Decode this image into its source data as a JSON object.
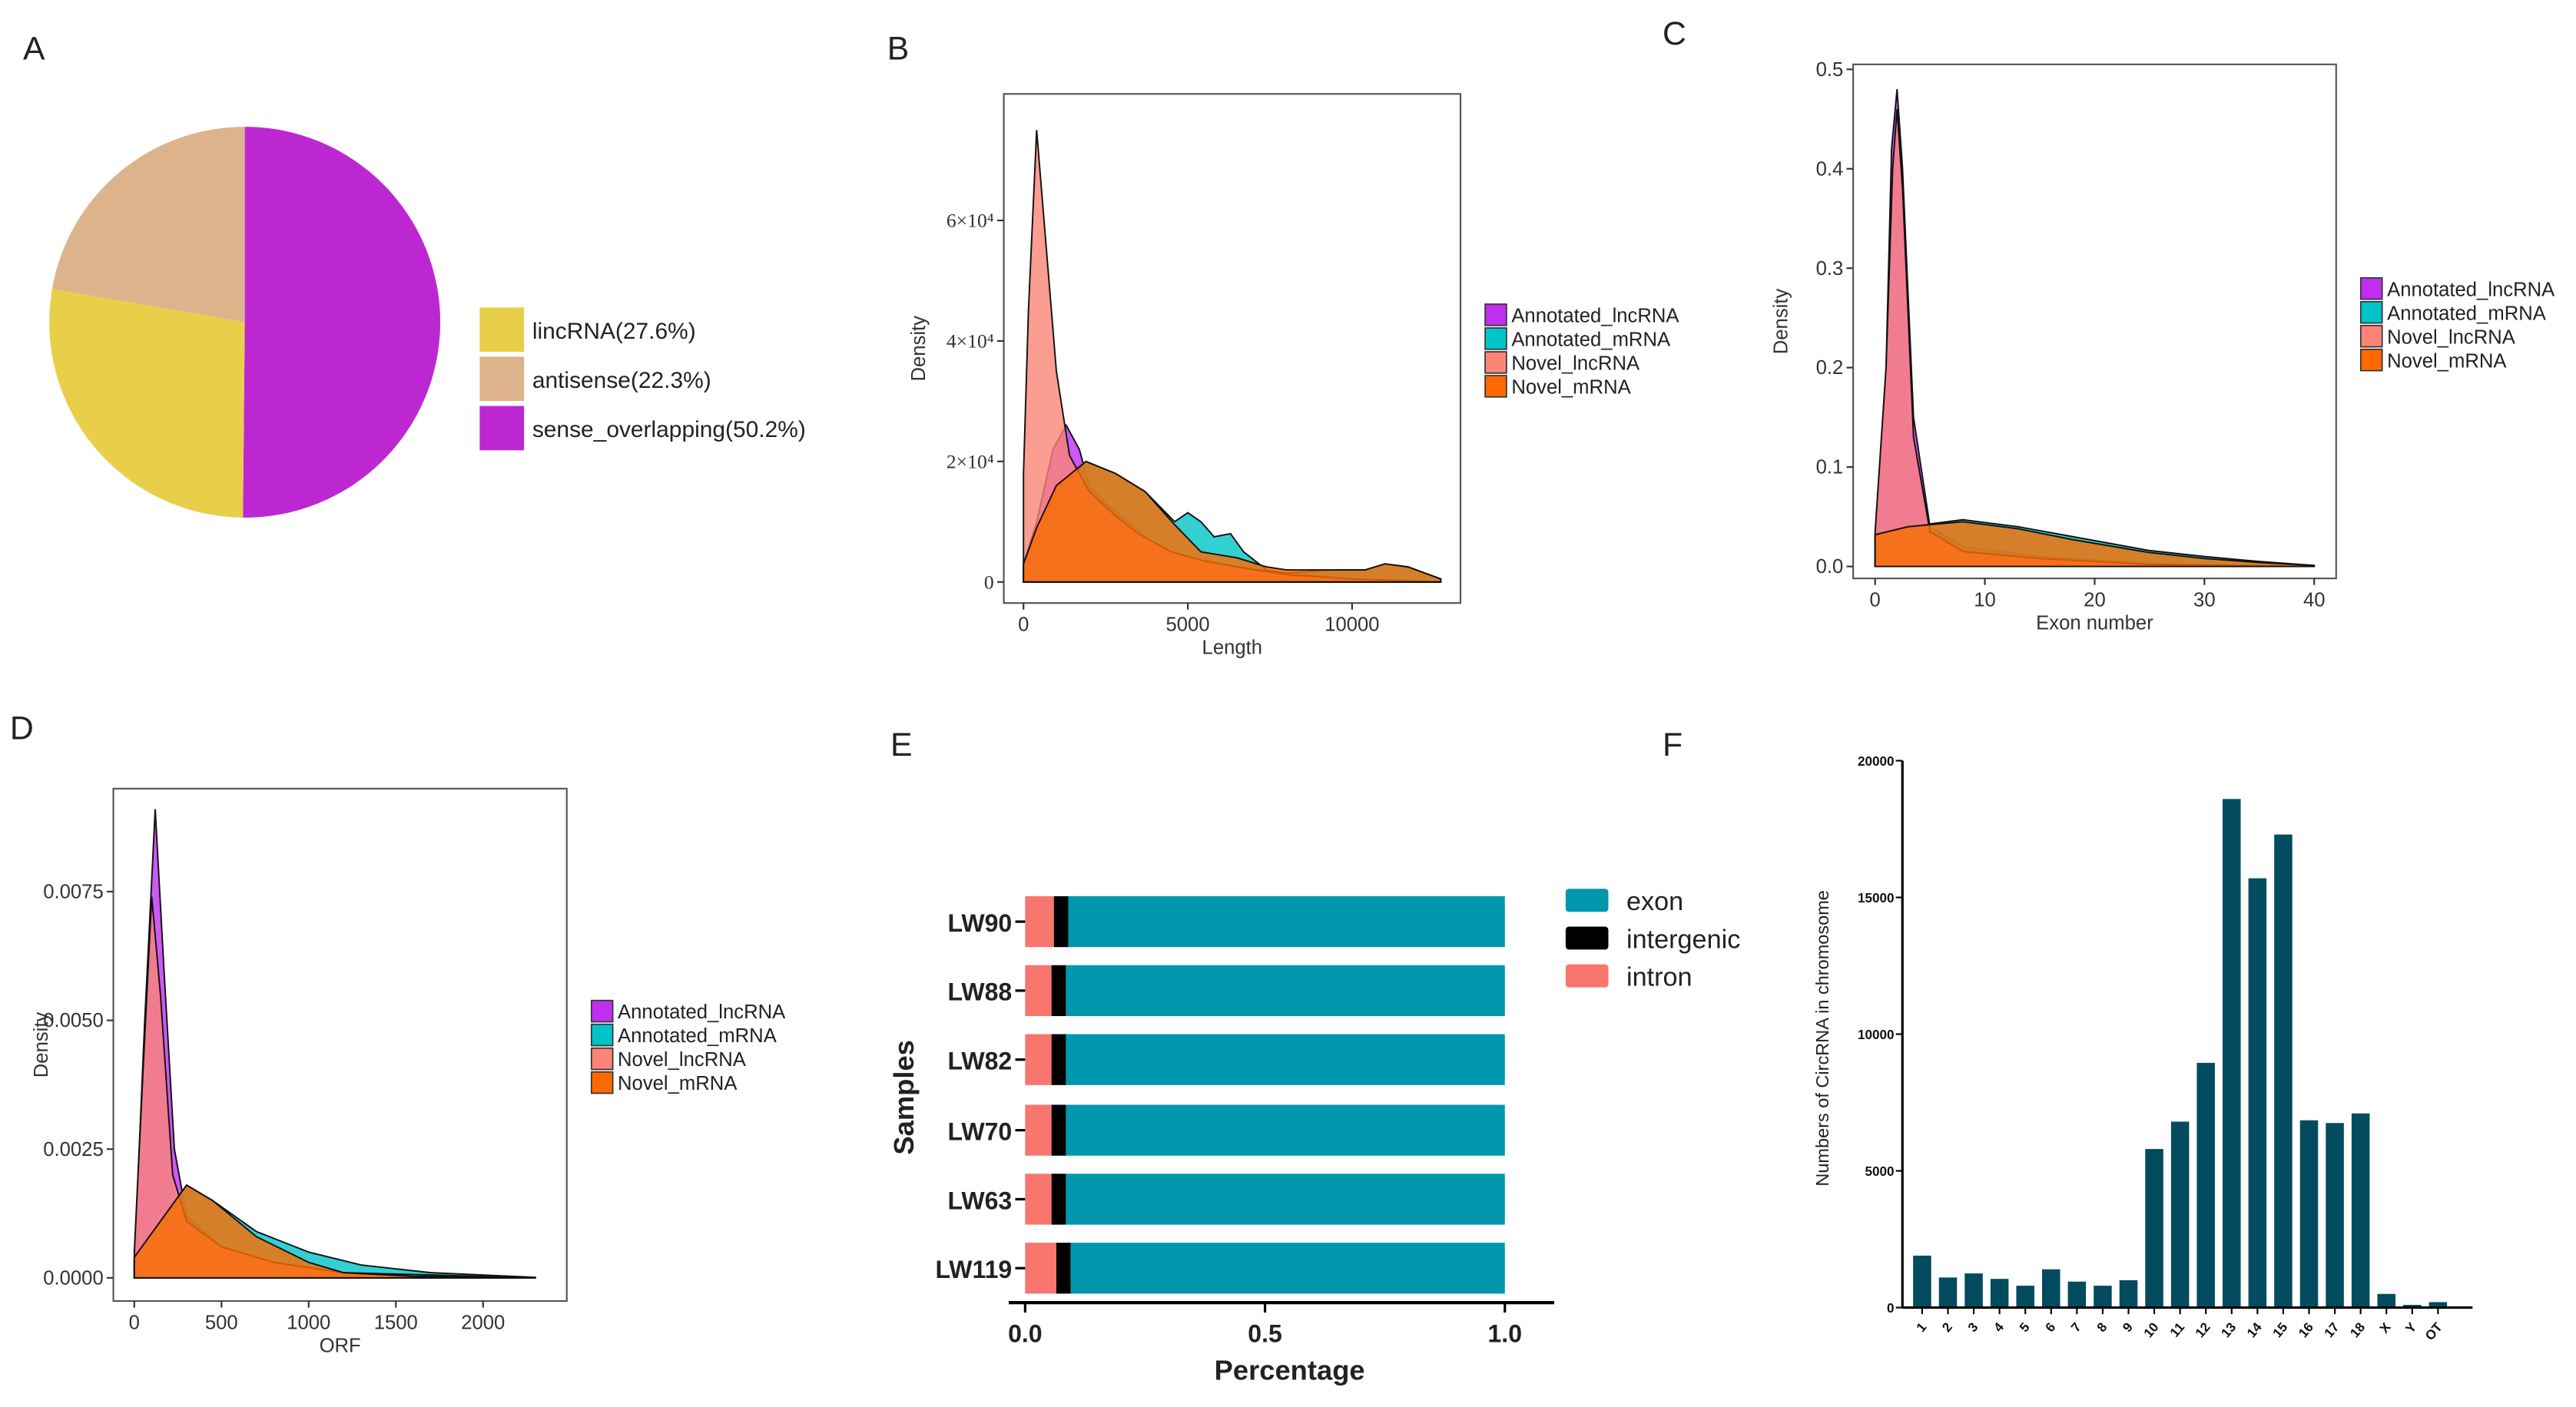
{
  "panel_labels": [
    "A",
    "B",
    "C",
    "D",
    "E",
    "F"
  ],
  "chart_data": [
    {
      "panel": "A",
      "type": "pie",
      "slices": [
        {
          "label": "sense_overlapping(50.2%)",
          "value": 50.2,
          "color": "#BD27D2"
        },
        {
          "label": "lincRNA(27.6%)",
          "value": 27.6,
          "color": "#E8CF4A"
        },
        {
          "label": "antisense(22.3%)",
          "value": 22.3,
          "color": "#DDB38C"
        }
      ],
      "legend_order": [
        1,
        2,
        0
      ],
      "legend": "right"
    },
    {
      "panel": "B",
      "type": "area",
      "xlabel": "Length",
      "ylabel": "Density",
      "xlim": [
        -600,
        13300
      ],
      "ylim": [
        -0.35,
        8.1
      ],
      "xticks": [
        "0",
        "5000",
        "10000"
      ],
      "xtick_values": [
        0,
        5000,
        10000
      ],
      "yticks": [
        "0",
        "2×10⁴",
        "4×10⁴",
        "6×10⁴"
      ],
      "ytick_values": [
        0,
        2,
        4,
        6
      ],
      "legend": "right",
      "series": [
        {
          "name": "Annotated_lncRNA",
          "color": "#C02FEF",
          "points": [
            [
              0,
              0.3
            ],
            [
              400,
              1.0
            ],
            [
              900,
              2.2
            ],
            [
              1300,
              2.6
            ],
            [
              1700,
              2.2
            ],
            [
              2000,
              1.6
            ],
            [
              2500,
              1.3
            ],
            [
              3200,
              1.0
            ],
            [
              4000,
              0.6
            ],
            [
              5000,
              0.4
            ],
            [
              6500,
              0.25
            ],
            [
              8000,
              0.15
            ],
            [
              10000,
              0.05
            ],
            [
              12700,
              0
            ]
          ]
        },
        {
          "name": "Annotated_mRNA",
          "color": "#00C4C8",
          "points": [
            [
              0,
              0.3
            ],
            [
              500,
              0.8
            ],
            [
              1000,
              1.5
            ],
            [
              1900,
              2.0
            ],
            [
              2800,
              1.8
            ],
            [
              3700,
              1.5
            ],
            [
              4600,
              1.0
            ],
            [
              5000,
              1.15
            ],
            [
              5400,
              1.0
            ],
            [
              5800,
              0.75
            ],
            [
              6300,
              0.8
            ],
            [
              6700,
              0.5
            ],
            [
              7400,
              0.2
            ],
            [
              8000,
              0.15
            ],
            [
              9500,
              0.2
            ],
            [
              10400,
              0.2
            ],
            [
              11000,
              0.3
            ],
            [
              11700,
              0.25
            ],
            [
              12700,
              0.05
            ]
          ]
        },
        {
          "name": "Novel_lncRNA",
          "color": "#FB8476",
          "points": [
            [
              0,
              1.8
            ],
            [
              150,
              4.5
            ],
            [
              400,
              7.5
            ],
            [
              700,
              5.5
            ],
            [
              1000,
              3.5
            ],
            [
              1400,
              2.1
            ],
            [
              2000,
              1.5
            ],
            [
              2800,
              1.1
            ],
            [
              3500,
              0.8
            ],
            [
              4500,
              0.5
            ],
            [
              5500,
              0.35
            ],
            [
              6500,
              0.25
            ],
            [
              8000,
              0.12
            ],
            [
              10000,
              0.05
            ],
            [
              12700,
              0
            ]
          ]
        },
        {
          "name": "Novel_mRNA",
          "color": "#FF6A00",
          "points": [
            [
              0,
              0.3
            ],
            [
              400,
              0.9
            ],
            [
              1000,
              1.6
            ],
            [
              1900,
              2.0
            ],
            [
              2800,
              1.8
            ],
            [
              3700,
              1.5
            ],
            [
              4600,
              0.95
            ],
            [
              5400,
              0.5
            ],
            [
              6500,
              0.4
            ],
            [
              7400,
              0.25
            ],
            [
              8000,
              0.2
            ],
            [
              9500,
              0.2
            ],
            [
              10400,
              0.2
            ],
            [
              11000,
              0.3
            ],
            [
              11700,
              0.25
            ],
            [
              12700,
              0.05
            ]
          ]
        }
      ]
    },
    {
      "panel": "C",
      "type": "area",
      "xlabel": "Exon number",
      "ylabel": "Density",
      "xlim": [
        -2,
        42
      ],
      "ylim": [
        -0.012,
        0.505
      ],
      "xticks": [
        "0",
        "10",
        "20",
        "30",
        "40"
      ],
      "xtick_values": [
        0,
        10,
        20,
        30,
        40
      ],
      "yticks": [
        "0.0",
        "0.1",
        "0.2",
        "0.3",
        "0.4",
        "0.5"
      ],
      "ytick_values": [
        0,
        0.1,
        0.2,
        0.3,
        0.4,
        0.5
      ],
      "legend": "right",
      "series": [
        {
          "name": "Annotated_lncRNA",
          "color": "#C02FEF",
          "points": [
            [
              0,
              0.03
            ],
            [
              1,
              0.2
            ],
            [
              1.5,
              0.42
            ],
            [
              2,
              0.48
            ],
            [
              2.5,
              0.4
            ],
            [
              3.5,
              0.15
            ],
            [
              5,
              0.04
            ],
            [
              8,
              0.02
            ],
            [
              15,
              0.01
            ],
            [
              25,
              0.003
            ],
            [
              40,
              0
            ]
          ]
        },
        {
          "name": "Annotated_mRNA",
          "color": "#00C4C8",
          "points": [
            [
              0,
              0.032
            ],
            [
              3,
              0.04
            ],
            [
              8,
              0.047
            ],
            [
              13,
              0.04
            ],
            [
              18,
              0.03
            ],
            [
              25,
              0.016
            ],
            [
              30,
              0.01
            ],
            [
              35,
              0.005
            ],
            [
              40,
              0.001
            ]
          ]
        },
        {
          "name": "Novel_lncRNA",
          "color": "#FB8476",
          "points": [
            [
              0,
              0.035
            ],
            [
              1,
              0.2
            ],
            [
              1.6,
              0.4
            ],
            [
              2,
              0.46
            ],
            [
              2.5,
              0.38
            ],
            [
              3.5,
              0.13
            ],
            [
              5,
              0.035
            ],
            [
              8,
              0.015
            ],
            [
              15,
              0.008
            ],
            [
              25,
              0.002
            ],
            [
              40,
              0
            ]
          ]
        },
        {
          "name": "Novel_mRNA",
          "color": "#FF6A00",
          "points": [
            [
              0,
              0.032
            ],
            [
              3,
              0.04
            ],
            [
              8,
              0.045
            ],
            [
              13,
              0.038
            ],
            [
              18,
              0.027
            ],
            [
              25,
              0.014
            ],
            [
              30,
              0.008
            ],
            [
              35,
              0.004
            ],
            [
              40,
              0.001
            ]
          ]
        }
      ]
    },
    {
      "panel": "D",
      "type": "area",
      "xlabel": "ORF",
      "ylabel": "Density",
      "xlim": [
        -120,
        2480
      ],
      "ylim": [
        -0.00045,
        0.0095
      ],
      "xticks": [
        "0",
        "500",
        "1000",
        "1500",
        "2000"
      ],
      "xtick_values": [
        0,
        500,
        1000,
        1500,
        2000
      ],
      "yticks": [
        "0.0000",
        "0.0025",
        "0.0050",
        "0.0075"
      ],
      "ytick_values": [
        0,
        0.0025,
        0.005,
        0.0075
      ],
      "legend": "right",
      "series": [
        {
          "name": "Annotated_lncRNA",
          "color": "#C02FEF",
          "points": [
            [
              0,
              0.0003
            ],
            [
              60,
              0.005
            ],
            [
              120,
              0.0091
            ],
            [
              170,
              0.006
            ],
            [
              230,
              0.0025
            ],
            [
              300,
              0.0012
            ],
            [
              500,
              0.0006
            ],
            [
              800,
              0.0003
            ],
            [
              1200,
              0.0001
            ],
            [
              2300,
              0
            ]
          ]
        },
        {
          "name": "Annotated_mRNA",
          "color": "#00C4C8",
          "points": [
            [
              0,
              0.0004
            ],
            [
              150,
              0.0011
            ],
            [
              300,
              0.0018
            ],
            [
              450,
              0.0015
            ],
            [
              700,
              0.0009
            ],
            [
              1000,
              0.0005
            ],
            [
              1300,
              0.00025
            ],
            [
              1700,
              0.0001
            ],
            [
              2300,
              1e-05
            ]
          ]
        },
        {
          "name": "Novel_lncRNA",
          "color": "#FB8476",
          "points": [
            [
              0,
              0.0005
            ],
            [
              50,
              0.004
            ],
            [
              100,
              0.0074
            ],
            [
              150,
              0.0055
            ],
            [
              220,
              0.002
            ],
            [
              300,
              0.0011
            ],
            [
              500,
              0.0006
            ],
            [
              800,
              0.0003
            ],
            [
              1200,
              0.0001
            ],
            [
              2300,
              0
            ]
          ]
        },
        {
          "name": "Novel_mRNA",
          "color": "#FF6A00",
          "points": [
            [
              0,
              0.0004
            ],
            [
              150,
              0.0011
            ],
            [
              300,
              0.0018
            ],
            [
              450,
              0.0015
            ],
            [
              700,
              0.0008
            ],
            [
              1000,
              0.0003
            ],
            [
              1200,
              0.0001
            ],
            [
              1600,
              3e-05
            ],
            [
              2300,
              0
            ]
          ]
        }
      ]
    },
    {
      "panel": "E",
      "type": "bar",
      "orientation": "horizontal",
      "stacked": true,
      "xlabel": "Percentage",
      "ylabel": "Samples",
      "xlim": [
        0,
        1.1
      ],
      "xticks": [
        "0.0",
        "0.5",
        "1.0"
      ],
      "xtick_values": [
        0,
        0.5,
        1.0
      ],
      "categories": [
        "LW90",
        "LW88",
        "LW82",
        "LW70",
        "LW63",
        "LW119"
      ],
      "legend": "right",
      "series": [
        {
          "name": "intron",
          "color": "#F8766D",
          "values": [
            0.06,
            0.055,
            0.055,
            0.055,
            0.055,
            0.065
          ]
        },
        {
          "name": "intergenic",
          "color": "#000000",
          "values": [
            0.03,
            0.03,
            0.03,
            0.03,
            0.03,
            0.03
          ]
        },
        {
          "name": "exon",
          "color": "#0097AC",
          "values": [
            0.91,
            0.915,
            0.915,
            0.915,
            0.915,
            0.905
          ]
        }
      ],
      "legend_order": [
        "exon",
        "intergenic",
        "intron"
      ]
    },
    {
      "panel": "F",
      "type": "bar",
      "ylabel": "Numbers of CircRNA in chromosome",
      "ylim": [
        0,
        20000
      ],
      "yticks": [
        "0",
        "5000",
        "10000",
        "15000",
        "20000"
      ],
      "ytick_values": [
        0,
        5000,
        10000,
        15000,
        20000
      ],
      "categories": [
        "1",
        "2",
        "3",
        "4",
        "5",
        "6",
        "7",
        "8",
        "9",
        "10",
        "11",
        "12",
        "13",
        "14",
        "15",
        "16",
        "17",
        "18",
        "X",
        "Y",
        "OT"
      ],
      "values": [
        1900,
        1100,
        1250,
        1050,
        800,
        1400,
        950,
        800,
        1000,
        5800,
        6800,
        8950,
        18600,
        15700,
        17300,
        6850,
        6750,
        7100,
        500,
        100,
        200
      ],
      "color": "#034B5F"
    }
  ]
}
